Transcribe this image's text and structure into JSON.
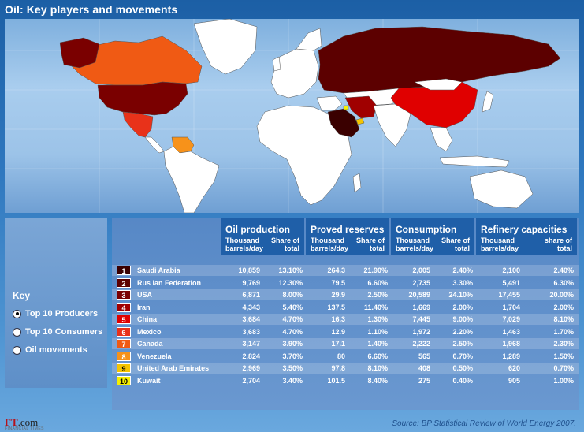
{
  "title": "Oil: Key players and movements",
  "key": {
    "title": "Key",
    "options": [
      {
        "label": "Top 10 Producers",
        "selected": true
      },
      {
        "label": "Top 10 Consumers",
        "selected": false
      },
      {
        "label": "Oil movements",
        "selected": false
      }
    ]
  },
  "table": {
    "headers": [
      {
        "title": "Oil production",
        "sub_left": "Thousand\nbarrels/day",
        "sub_right": "Share of\ntotal"
      },
      {
        "title": "Proved reserves",
        "sub_left": "Thousand\nbarrels/day",
        "sub_right": "Share of\ntotal"
      },
      {
        "title": "Consumption",
        "sub_left": "Thousand\nbarrels/day",
        "sub_right": "Share of\ntotal"
      },
      {
        "title": "Refinery capacities",
        "sub_left": "Thousand\nbarrels/day",
        "sub_right": "share of\ntotal"
      }
    ],
    "rows": [
      {
        "rank": "1",
        "country": "Saudi Arabia",
        "color": "#3a0000",
        "values": [
          "10,859",
          "13.10%",
          "264.3",
          "21.90%",
          "2,005",
          "2.40%",
          "2,100",
          "2.40%"
        ]
      },
      {
        "rank": "2",
        "country": "Rus ian Federation",
        "color": "#5c0000",
        "values": [
          "9,769",
          "12.30%",
          "79.5",
          "6.60%",
          "2,735",
          "3.30%",
          "5,491",
          "6.30%"
        ]
      },
      {
        "rank": "3",
        "country": "USA",
        "color": "#7a0000",
        "values": [
          "6,871",
          "8.00%",
          "29.9",
          "2.50%",
          "20,589",
          "24.10%",
          "17,455",
          "20.00%"
        ]
      },
      {
        "rank": "4",
        "country": "Iran",
        "color": "#a00000",
        "values": [
          "4,343",
          "5.40%",
          "137.5",
          "11.40%",
          "1,669",
          "2.00%",
          "1,704",
          "2.00%"
        ]
      },
      {
        "rank": "5",
        "country": "China",
        "color": "#e00000",
        "values": [
          "3,684",
          "4.70%",
          "16.3",
          "1.30%",
          "7,445",
          "9.00%",
          "7,029",
          "8.10%"
        ]
      },
      {
        "rank": "6",
        "country": "Mexico",
        "color": "#e8321a",
        "values": [
          "3,683",
          "4.70%",
          "12.9",
          "1.10%",
          "1,972",
          "2.20%",
          "1,463",
          "1.70%"
        ]
      },
      {
        "rank": "7",
        "country": "Canada",
        "color": "#f05a14",
        "values": [
          "3,147",
          "3.90%",
          "17.1",
          "1.40%",
          "2,222",
          "2.50%",
          "1,968",
          "2.30%"
        ]
      },
      {
        "rank": "8",
        "country": "Venezuela",
        "color": "#f7921a",
        "values": [
          "2,824",
          "3.70%",
          "80",
          "6.60%",
          "565",
          "0.70%",
          "1,289",
          "1.50%"
        ]
      },
      {
        "rank": "9",
        "country": "United Arab Emirates",
        "color": "#f5c400",
        "values": [
          "2,969",
          "3.50%",
          "97.8",
          "8.10%",
          "408",
          "0.50%",
          "620",
          "0.70%"
        ]
      },
      {
        "rank": "10",
        "country": "Kuwait",
        "color": "#f6f000",
        "values": [
          "2,704",
          "3.40%",
          "101.5",
          "8.40%",
          "275",
          "0.40%",
          "905",
          "1.00%"
        ]
      }
    ]
  },
  "map": {
    "country_colors": {
      "russia": "#5c0000",
      "usa": "#7a0000",
      "canada": "#f05a14",
      "mexico": "#e8321a",
      "venezuela": "#f7921a",
      "saudi_arabia": "#3a0000",
      "iran": "#a00000",
      "china": "#e00000",
      "uae": "#f5c400",
      "kuwait": "#f6f000",
      "other": "#ffffff",
      "greenland": "#ffffff"
    }
  },
  "source": "Source: BP Statistical Review of World Energy 2007.",
  "logo": {
    "brand": "FT",
    "suffix": ".com",
    "tagline": "FINANCIAL TIMES"
  }
}
